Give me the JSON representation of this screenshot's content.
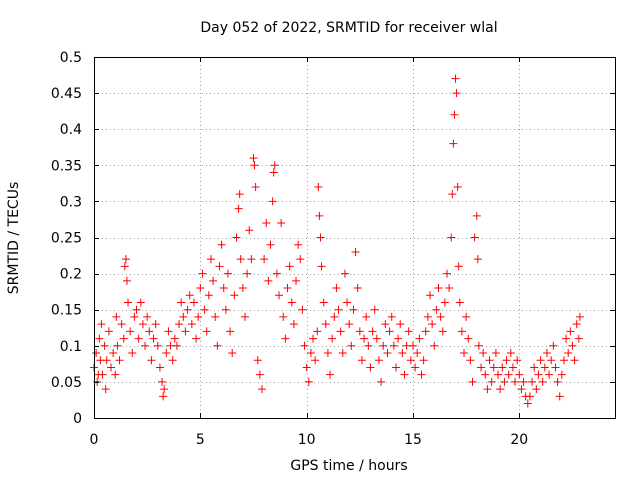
{
  "chart_data": {
    "type": "scatter",
    "title": "Day 052 of 2022, SRMTID for receiver wlal",
    "xlabel": "GPS time / hours",
    "ylabel": "SRMTID / TECUs",
    "xlim": [
      0,
      24.5
    ],
    "ylim": [
      0,
      0.5
    ],
    "xticks": [
      0,
      5,
      10,
      15,
      20
    ],
    "xtick_labels": [
      "0",
      "5",
      "10",
      "15",
      "20"
    ],
    "yticks": [
      0,
      0.05,
      0.1,
      0.15,
      0.2,
      0.25,
      0.3,
      0.35,
      0.4,
      0.45,
      0.5
    ],
    "ytick_labels": [
      "0",
      "0.05",
      "0.1",
      "0.15",
      "0.2",
      "0.25",
      "0.3",
      "0.35",
      "0.4",
      "0.45",
      "0.5"
    ],
    "grid": true,
    "marker": "+",
    "marker_color": "#ff0000",
    "series": [
      {
        "name": "SRMTID",
        "points": [
          [
            0.0,
            0.07
          ],
          [
            0.1,
            0.09
          ],
          [
            0.15,
            0.05
          ],
          [
            0.2,
            0.06
          ],
          [
            0.25,
            0.11
          ],
          [
            0.3,
            0.08
          ],
          [
            0.35,
            0.13
          ],
          [
            0.4,
            0.06
          ],
          [
            0.5,
            0.1
          ],
          [
            0.55,
            0.04
          ],
          [
            0.6,
            0.08
          ],
          [
            0.7,
            0.12
          ],
          [
            0.8,
            0.07
          ],
          [
            0.9,
            0.09
          ],
          [
            1.0,
            0.06
          ],
          [
            1.05,
            0.14
          ],
          [
            1.1,
            0.1
          ],
          [
            1.2,
            0.08
          ],
          [
            1.3,
            0.13
          ],
          [
            1.4,
            0.11
          ],
          [
            1.45,
            0.21
          ],
          [
            1.5,
            0.22
          ],
          [
            1.55,
            0.19
          ],
          [
            1.6,
            0.16
          ],
          [
            1.7,
            0.12
          ],
          [
            1.8,
            0.09
          ],
          [
            1.9,
            0.14
          ],
          [
            2.0,
            0.15
          ],
          [
            2.1,
            0.11
          ],
          [
            2.2,
            0.16
          ],
          [
            2.3,
            0.13
          ],
          [
            2.4,
            0.1
          ],
          [
            2.5,
            0.14
          ],
          [
            2.6,
            0.12
          ],
          [
            2.7,
            0.08
          ],
          [
            2.8,
            0.11
          ],
          [
            2.9,
            0.13
          ],
          [
            3.0,
            0.1
          ],
          [
            3.1,
            0.07
          ],
          [
            3.2,
            0.05
          ],
          [
            3.25,
            0.03
          ],
          [
            3.3,
            0.04
          ],
          [
            3.4,
            0.09
          ],
          [
            3.5,
            0.12
          ],
          [
            3.6,
            0.1
          ],
          [
            3.7,
            0.08
          ],
          [
            3.8,
            0.11
          ],
          [
            3.9,
            0.1
          ],
          [
            4.0,
            0.13
          ],
          [
            4.1,
            0.16
          ],
          [
            4.2,
            0.14
          ],
          [
            4.3,
            0.12
          ],
          [
            4.4,
            0.15
          ],
          [
            4.5,
            0.17
          ],
          [
            4.6,
            0.13
          ],
          [
            4.7,
            0.16
          ],
          [
            4.8,
            0.11
          ],
          [
            4.9,
            0.14
          ],
          [
            5.0,
            0.18
          ],
          [
            5.1,
            0.2
          ],
          [
            5.2,
            0.15
          ],
          [
            5.3,
            0.12
          ],
          [
            5.4,
            0.17
          ],
          [
            5.5,
            0.22
          ],
          [
            5.6,
            0.19
          ],
          [
            5.7,
            0.14
          ],
          [
            5.8,
            0.1
          ],
          [
            5.9,
            0.21
          ],
          [
            6.0,
            0.24
          ],
          [
            6.1,
            0.18
          ],
          [
            6.2,
            0.15
          ],
          [
            6.3,
            0.2
          ],
          [
            6.4,
            0.12
          ],
          [
            6.5,
            0.09
          ],
          [
            6.6,
            0.17
          ],
          [
            6.7,
            0.25
          ],
          [
            6.8,
            0.29
          ],
          [
            6.85,
            0.31
          ],
          [
            6.9,
            0.22
          ],
          [
            7.0,
            0.18
          ],
          [
            7.1,
            0.14
          ],
          [
            7.2,
            0.2
          ],
          [
            7.3,
            0.26
          ],
          [
            7.4,
            0.22
          ],
          [
            7.5,
            0.36
          ],
          [
            7.55,
            0.35
          ],
          [
            7.6,
            0.32
          ],
          [
            7.7,
            0.08
          ],
          [
            7.8,
            0.06
          ],
          [
            7.9,
            0.04
          ],
          [
            8.0,
            0.22
          ],
          [
            8.1,
            0.27
          ],
          [
            8.2,
            0.19
          ],
          [
            8.3,
            0.24
          ],
          [
            8.4,
            0.3
          ],
          [
            8.45,
            0.34
          ],
          [
            8.5,
            0.35
          ],
          [
            8.6,
            0.2
          ],
          [
            8.7,
            0.17
          ],
          [
            8.8,
            0.27
          ],
          [
            8.9,
            0.14
          ],
          [
            9.0,
            0.11
          ],
          [
            9.1,
            0.18
          ],
          [
            9.2,
            0.21
          ],
          [
            9.3,
            0.16
          ],
          [
            9.4,
            0.13
          ],
          [
            9.5,
            0.19
          ],
          [
            9.6,
            0.24
          ],
          [
            9.7,
            0.22
          ],
          [
            9.8,
            0.15
          ],
          [
            9.9,
            0.1
          ],
          [
            10.0,
            0.07
          ],
          [
            10.1,
            0.05
          ],
          [
            10.2,
            0.09
          ],
          [
            10.3,
            0.11
          ],
          [
            10.4,
            0.08
          ],
          [
            10.5,
            0.12
          ],
          [
            10.55,
            0.32
          ],
          [
            10.6,
            0.28
          ],
          [
            10.65,
            0.25
          ],
          [
            10.7,
            0.21
          ],
          [
            10.8,
            0.16
          ],
          [
            10.9,
            0.13
          ],
          [
            11.0,
            0.09
          ],
          [
            11.1,
            0.06
          ],
          [
            11.2,
            0.11
          ],
          [
            11.3,
            0.14
          ],
          [
            11.4,
            0.18
          ],
          [
            11.5,
            0.15
          ],
          [
            11.6,
            0.12
          ],
          [
            11.7,
            0.09
          ],
          [
            11.8,
            0.2
          ],
          [
            11.9,
            0.16
          ],
          [
            12.0,
            0.13
          ],
          [
            12.1,
            0.1
          ],
          [
            12.2,
            0.15
          ],
          [
            12.3,
            0.23
          ],
          [
            12.4,
            0.18
          ],
          [
            12.5,
            0.12
          ],
          [
            12.6,
            0.08
          ],
          [
            12.7,
            0.11
          ],
          [
            12.8,
            0.14
          ],
          [
            12.9,
            0.1
          ],
          [
            13.0,
            0.07
          ],
          [
            13.1,
            0.12
          ],
          [
            13.2,
            0.15
          ],
          [
            13.3,
            0.11
          ],
          [
            13.4,
            0.08
          ],
          [
            13.5,
            0.05
          ],
          [
            13.6,
            0.1
          ],
          [
            13.7,
            0.13
          ],
          [
            13.8,
            0.09
          ],
          [
            13.9,
            0.12
          ],
          [
            14.0,
            0.14
          ],
          [
            14.1,
            0.1
          ],
          [
            14.2,
            0.07
          ],
          [
            14.3,
            0.11
          ],
          [
            14.4,
            0.13
          ],
          [
            14.5,
            0.09
          ],
          [
            14.6,
            0.06
          ],
          [
            14.7,
            0.1
          ],
          [
            14.8,
            0.12
          ],
          [
            14.9,
            0.08
          ],
          [
            15.0,
            0.1
          ],
          [
            15.1,
            0.07
          ],
          [
            15.2,
            0.09
          ],
          [
            15.3,
            0.11
          ],
          [
            15.4,
            0.06
          ],
          [
            15.5,
            0.08
          ],
          [
            15.6,
            0.12
          ],
          [
            15.7,
            0.14
          ],
          [
            15.8,
            0.17
          ],
          [
            15.9,
            0.13
          ],
          [
            16.0,
            0.1
          ],
          [
            16.1,
            0.15
          ],
          [
            16.2,
            0.18
          ],
          [
            16.3,
            0.14
          ],
          [
            16.4,
            0.12
          ],
          [
            16.5,
            0.16
          ],
          [
            16.6,
            0.2
          ],
          [
            16.7,
            0.18
          ],
          [
            16.8,
            0.25
          ],
          [
            16.85,
            0.31
          ],
          [
            16.9,
            0.38
          ],
          [
            16.95,
            0.42
          ],
          [
            17.0,
            0.47
          ],
          [
            17.05,
            0.45
          ],
          [
            17.1,
            0.32
          ],
          [
            17.15,
            0.21
          ],
          [
            17.2,
            0.16
          ],
          [
            17.3,
            0.12
          ],
          [
            17.4,
            0.09
          ],
          [
            17.5,
            0.14
          ],
          [
            17.6,
            0.11
          ],
          [
            17.7,
            0.08
          ],
          [
            17.8,
            0.05
          ],
          [
            17.9,
            0.25
          ],
          [
            18.0,
            0.28
          ],
          [
            18.05,
            0.22
          ],
          [
            18.1,
            0.1
          ],
          [
            18.2,
            0.07
          ],
          [
            18.3,
            0.09
          ],
          [
            18.4,
            0.06
          ],
          [
            18.5,
            0.04
          ],
          [
            18.6,
            0.08
          ],
          [
            18.7,
            0.05
          ],
          [
            18.8,
            0.07
          ],
          [
            18.9,
            0.09
          ],
          [
            19.0,
            0.06
          ],
          [
            19.1,
            0.04
          ],
          [
            19.2,
            0.07
          ],
          [
            19.3,
            0.05
          ],
          [
            19.4,
            0.08
          ],
          [
            19.5,
            0.06
          ],
          [
            19.6,
            0.09
          ],
          [
            19.7,
            0.07
          ],
          [
            19.8,
            0.05
          ],
          [
            19.9,
            0.08
          ],
          [
            20.0,
            0.06
          ],
          [
            20.1,
            0.04
          ],
          [
            20.2,
            0.05
          ],
          [
            20.3,
            0.03
          ],
          [
            20.4,
            0.02
          ],
          [
            20.5,
            0.03
          ],
          [
            20.6,
            0.05
          ],
          [
            20.7,
            0.07
          ],
          [
            20.8,
            0.04
          ],
          [
            20.9,
            0.06
          ],
          [
            21.0,
            0.08
          ],
          [
            21.1,
            0.05
          ],
          [
            21.2,
            0.07
          ],
          [
            21.3,
            0.09
          ],
          [
            21.4,
            0.06
          ],
          [
            21.5,
            0.08
          ],
          [
            21.6,
            0.1
          ],
          [
            21.7,
            0.07
          ],
          [
            21.8,
            0.05
          ],
          [
            21.9,
            0.03
          ],
          [
            22.0,
            0.06
          ],
          [
            22.1,
            0.08
          ],
          [
            22.2,
            0.11
          ],
          [
            22.3,
            0.09
          ],
          [
            22.4,
            0.12
          ],
          [
            22.5,
            0.1
          ],
          [
            22.6,
            0.08
          ],
          [
            22.7,
            0.13
          ],
          [
            22.8,
            0.11
          ],
          [
            22.85,
            0.14
          ]
        ]
      }
    ]
  }
}
